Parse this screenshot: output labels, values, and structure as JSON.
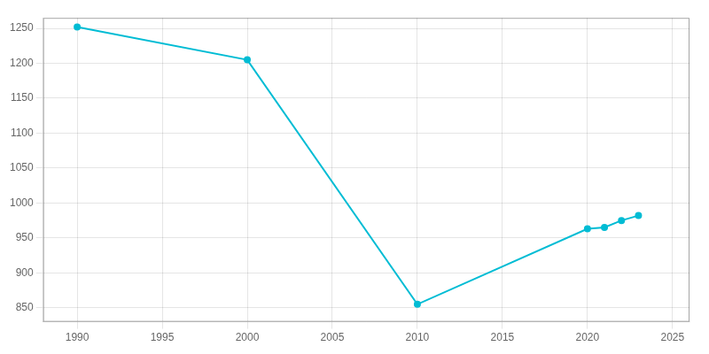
{
  "chart_data": {
    "type": "line",
    "x": [
      1990,
      2000,
      2010,
      2020,
      2021,
      2022,
      2023
    ],
    "values": [
      1252,
      1205,
      855,
      963,
      965,
      975,
      982
    ],
    "color": "#00bcd4",
    "marker": "circle",
    "xlim": [
      1988,
      2026
    ],
    "xticks": [
      1990,
      1995,
      2000,
      2005,
      2010,
      2015,
      2020,
      2025
    ],
    "ylim": [
      830,
      1265
    ],
    "yticks": [
      850,
      900,
      950,
      1000,
      1050,
      1100,
      1150,
      1200,
      1250
    ],
    "grid": true
  }
}
